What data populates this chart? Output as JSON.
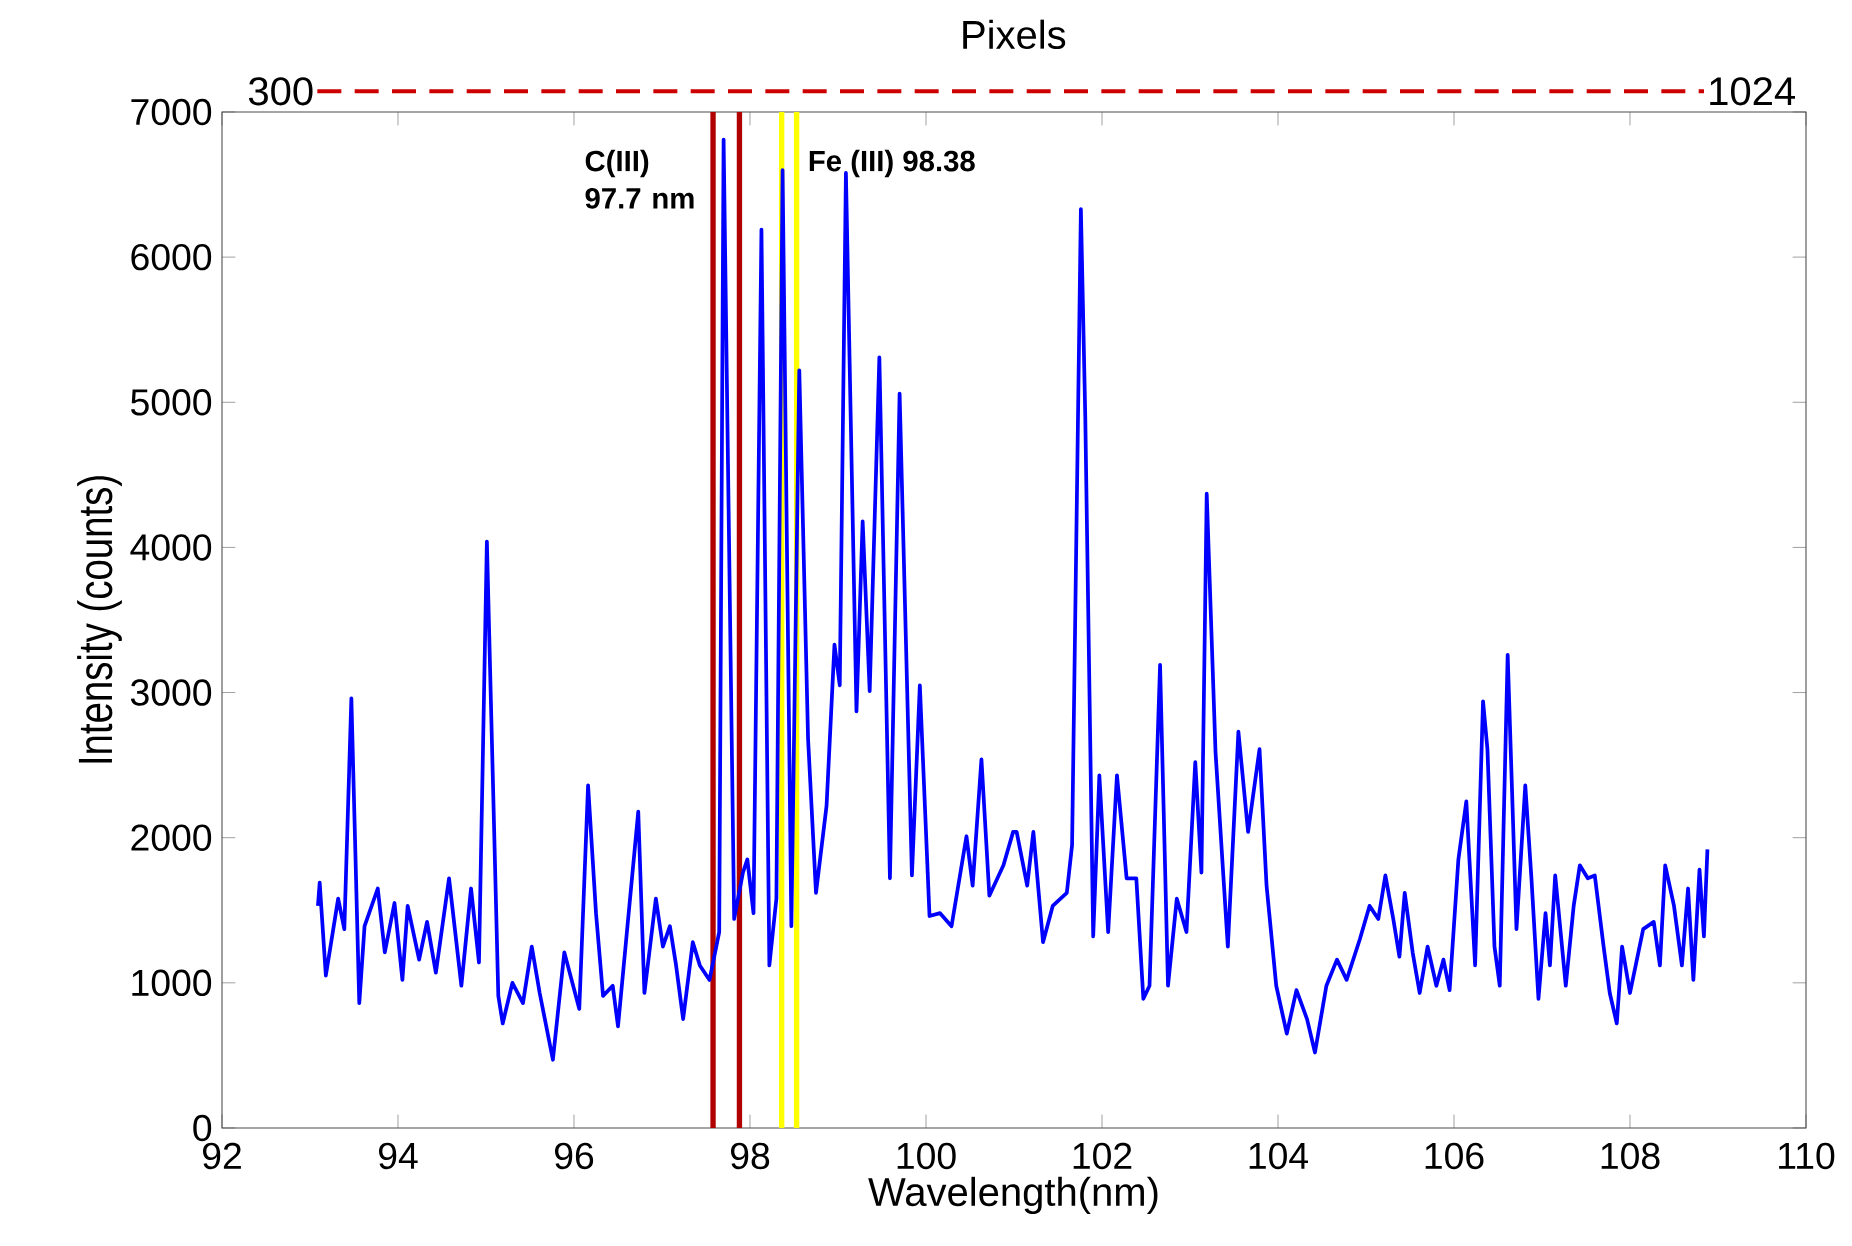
{
  "chart_data": {
    "type": "line",
    "xlabel": "Wavelength(nm)",
    "ylabel": "Intensity (counts)",
    "xlim": [
      92,
      110
    ],
    "xticks": [
      92,
      94,
      96,
      98,
      100,
      102,
      104,
      106,
      108,
      110
    ],
    "ylim": [
      0,
      7000
    ],
    "yticks": [
      0,
      1000,
      2000,
      3000,
      4000,
      5000,
      6000,
      7000
    ],
    "grid": false,
    "marker": "none",
    "line_style": "solid",
    "annotations": [
      "Pixels",
      "300",
      "1024"
    ],
    "ref_lines": [
      {
        "axis": "x",
        "value": 97.58,
        "label": "C(III) 97.7 nm",
        "color": "#b00000"
      },
      {
        "axis": "x",
        "value": 97.88,
        "label": null,
        "color": "#b00000"
      },
      {
        "axis": "x",
        "value": 98.36,
        "label": "Fe (III) 98.38",
        "color": "#ffff00"
      },
      {
        "axis": "x",
        "value": 98.53,
        "label": null,
        "color": "#ffff00"
      }
    ],
    "series": [
      {
        "color": "#0000ff",
        "x": [
          93.09,
          93.11,
          93.18,
          93.32,
          93.39,
          93.47,
          93.56,
          93.62,
          93.77,
          93.85,
          93.96,
          94.05,
          94.11,
          94.24,
          94.33,
          94.43,
          94.58,
          94.72,
          94.83,
          94.92,
          95.01,
          95.14,
          95.19,
          95.3,
          95.42,
          95.52,
          95.61,
          95.76,
          95.89,
          96.06,
          96.16,
          96.25,
          96.33,
          96.44,
          96.5,
          96.73,
          96.8,
          96.93,
          97.01,
          97.09,
          97.16,
          97.24,
          97.35,
          97.43,
          97.54,
          97.65,
          97.7,
          97.82,
          97.92,
          97.97,
          98.04,
          98.13,
          98.22,
          98.3,
          98.37,
          98.47,
          98.56,
          98.66,
          98.75,
          98.87,
          98.96,
          99.02,
          99.09,
          99.21,
          99.28,
          99.36,
          99.47,
          99.59,
          99.7,
          99.84,
          99.93,
          100.04,
          100.16,
          100.29,
          100.46,
          100.53,
          100.63,
          100.72,
          100.88,
          100.99,
          101.03,
          101.15,
          101.22,
          101.33,
          101.44,
          101.6,
          101.66,
          101.76,
          101.81,
          101.9,
          101.97,
          102.07,
          102.17,
          102.28,
          102.39,
          102.47,
          102.54,
          102.66,
          102.75,
          102.85,
          102.96,
          103.06,
          103.13,
          103.19,
          103.29,
          103.43,
          103.55,
          103.66,
          103.79,
          103.87,
          103.98,
          104.1,
          104.21,
          104.33,
          104.42,
          104.55,
          104.67,
          104.78,
          104.93,
          105.04,
          105.14,
          105.22,
          105.31,
          105.38,
          105.44,
          105.53,
          105.61,
          105.7,
          105.8,
          105.88,
          105.95,
          106.05,
          106.14,
          106.24,
          106.33,
          106.38,
          106.46,
          106.52,
          106.61,
          106.71,
          106.81,
          106.88,
          106.96,
          107.04,
          107.09,
          107.15,
          107.27,
          107.36,
          107.43,
          107.52,
          107.6,
          107.7,
          107.77,
          107.85,
          107.91,
          108.0,
          108.15,
          108.27,
          108.34,
          108.4,
          108.5,
          108.59,
          108.66,
          108.72,
          108.79,
          108.84,
          108.88
        ],
        "values": [
          1530,
          1690,
          1050,
          1580,
          1370,
          2960,
          860,
          1390,
          1650,
          1210,
          1550,
          1020,
          1530,
          1160,
          1420,
          1070,
          1720,
          980,
          1650,
          1140,
          4040,
          910,
          720,
          1000,
          860,
          1250,
          930,
          470,
          1210,
          820,
          2360,
          1480,
          910,
          980,
          700,
          2180,
          930,
          1580,
          1250,
          1390,
          1120,
          750,
          1280,
          1120,
          1020,
          1350,
          6810,
          1440,
          1760,
          1850,
          1480,
          6190,
          1120,
          1580,
          6600,
          1390,
          5220,
          2680,
          1620,
          2220,
          3330,
          3050,
          6580,
          2870,
          4180,
          3010,
          5310,
          1720,
          5060,
          1740,
          3050,
          1460,
          1480,
          1390,
          2010,
          1670,
          2540,
          1600,
          1810,
          2040,
          2040,
          1670,
          2040,
          1280,
          1530,
          1620,
          1950,
          6330,
          4900,
          1320,
          2430,
          1350,
          2430,
          1720,
          1720,
          890,
          980,
          3190,
          980,
          1580,
          1350,
          2520,
          1760,
          4370,
          2590,
          1250,
          2730,
          2040,
          2610,
          1670,
          980,
          650,
          950,
          750,
          520,
          980,
          1160,
          1020,
          1300,
          1530,
          1440,
          1740,
          1440,
          1180,
          1620,
          1210,
          930,
          1250,
          980,
          1160,
          950,
          1850,
          2250,
          1120,
          2940,
          2610,
          1250,
          980,
          3260,
          1370,
          2360,
          1720,
          890,
          1480,
          1120,
          1740,
          980,
          1530,
          1810,
          1720,
          1740,
          1250,
          930,
          720,
          1250,
          930,
          1370,
          1420,
          1120,
          1810,
          1530,
          1120,
          1650,
          1020,
          1780,
          1320,
          1920
        ]
      }
    ]
  }
}
